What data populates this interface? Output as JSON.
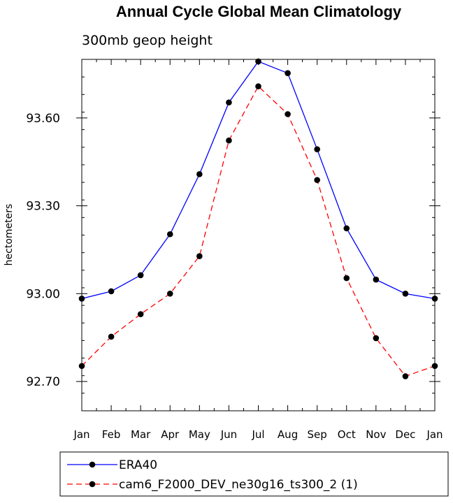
{
  "chart_data": {
    "type": "line",
    "title": "Annual Cycle Global Mean Climatology",
    "subtitle": "300mb geop height",
    "xlabel": "",
    "ylabel": "hectometers",
    "categories": [
      "Jan",
      "Feb",
      "Mar",
      "Apr",
      "May",
      "Jun",
      "Jul",
      "Aug",
      "Sep",
      "Oct",
      "Nov",
      "Dec",
      "Jan"
    ],
    "yticks": [
      "92.70",
      "93.00",
      "93.30",
      "93.60"
    ],
    "ytick_values": [
      92.7,
      93.0,
      93.3,
      93.6
    ],
    "ylim": [
      92.6,
      93.8
    ],
    "grid": false,
    "legend_position": "bottom",
    "series": [
      {
        "name": "ERA40",
        "color": "#0000ff",
        "dash": "solid",
        "values": [
          92.983,
          93.008,
          93.063,
          93.203,
          93.408,
          93.653,
          93.793,
          93.753,
          93.493,
          93.223,
          93.048,
          93.0,
          92.983
        ]
      },
      {
        "name": "cam6_F2000_DEV_ne30g16_ts300_2 (1)",
        "color": "#ff0000",
        "dash": "dashed",
        "values": [
          92.753,
          92.853,
          92.93,
          93.0,
          93.128,
          93.523,
          93.708,
          93.613,
          93.388,
          93.053,
          92.848,
          92.718,
          92.753
        ]
      }
    ]
  }
}
